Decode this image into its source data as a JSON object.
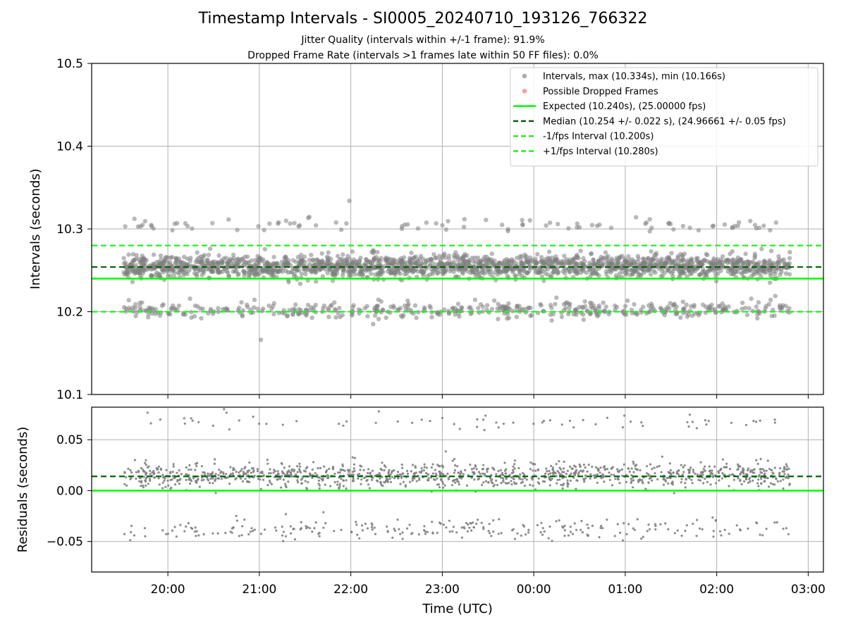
{
  "title": "Timestamp Intervals - SI0005_20240710_193126_766322",
  "subtitle_lines": [
    "Jitter Quality (intervals within +/-1 frame): 91.9%",
    "Dropped Frame Rate (intervals >1 frames late within 50 FF files): 0.0%"
  ],
  "colors": {
    "intervals": "#808080",
    "dropped": "#ff6666",
    "expected": "#00ff00",
    "median": "#006400",
    "fps_bounds": "#22ee22",
    "grid": "#b0b0b0"
  },
  "chart_data": [
    {
      "type": "scatter",
      "xlabel": "",
      "ylabel": "Intervals (seconds)",
      "ylim": [
        10.1,
        10.5
      ],
      "yticks": [
        10.1,
        10.2,
        10.3,
        10.4,
        10.5
      ],
      "xlim": [
        "19:10",
        "03:10"
      ],
      "xticks": [
        "20:00",
        "21:00",
        "22:00",
        "23:00",
        "00:00",
        "01:00",
        "02:00",
        "03:00"
      ],
      "grid": true,
      "legend_position": "top-right",
      "legend": [
        {
          "label": "Intervals, max (10.334s), min (10.166s)",
          "kind": "marker",
          "color": "#808080"
        },
        {
          "label": "Possible Dropped Frames",
          "kind": "marker",
          "color": "#ff6666"
        },
        {
          "label": "Expected (10.240s), (25.00000 fps)",
          "kind": "solid",
          "color": "#00ff00"
        },
        {
          "label": "Median (10.254 +/- 0.022 s), (24.96661 +/- 0.05 fps)",
          "kind": "dashed",
          "color": "#006400"
        },
        {
          "label": "-1/fps Interval (10.200s)",
          "kind": "dashed",
          "color": "#22ee22"
        },
        {
          "label": "+1/fps Interval (10.280s)",
          "kind": "dashed",
          "color": "#22ee22"
        }
      ],
      "reference_lines": {
        "expected": 10.24,
        "median": 10.254,
        "minus_1fps": 10.2,
        "plus_1fps": 10.28
      },
      "series": [
        {
          "name": "Intervals",
          "time_range": [
            "19:31",
            "02:48"
          ],
          "n_points": 2550,
          "max": 10.334,
          "min": 10.166,
          "clusters": [
            {
              "center": 10.255,
              "spread": 0.007,
              "fraction": 0.78
            },
            {
              "center": 10.202,
              "spread": 0.005,
              "fraction": 0.18
            },
            {
              "center": 10.305,
              "spread": 0.004,
              "fraction": 0.04
            }
          ]
        }
      ]
    },
    {
      "type": "scatter",
      "xlabel": "Time (UTC)",
      "ylabel": "Residuals (seconds)",
      "ylim": [
        -0.08,
        0.082
      ],
      "yticks": [
        -0.05,
        0.0,
        0.05
      ],
      "ytick_labels": [
        "−0.05",
        "0.00",
        "0.05"
      ],
      "xlim": [
        "19:10",
        "03:10"
      ],
      "xticks": [
        "20:00",
        "21:00",
        "22:00",
        "23:00",
        "00:00",
        "01:00",
        "02:00",
        "03:00"
      ],
      "grid": true,
      "reference_lines": {
        "expected": 0.0,
        "median": 0.014
      },
      "series": [
        {
          "name": "Residuals",
          "time_range": [
            "19:31",
            "02:48"
          ],
          "n_points": 1500,
          "clusters": [
            {
              "center": 0.015,
              "spread": 0.006,
              "fraction": 0.78
            },
            {
              "center": -0.038,
              "spread": 0.005,
              "fraction": 0.18
            },
            {
              "center": 0.068,
              "spread": 0.004,
              "fraction": 0.04
            }
          ]
        }
      ]
    }
  ]
}
